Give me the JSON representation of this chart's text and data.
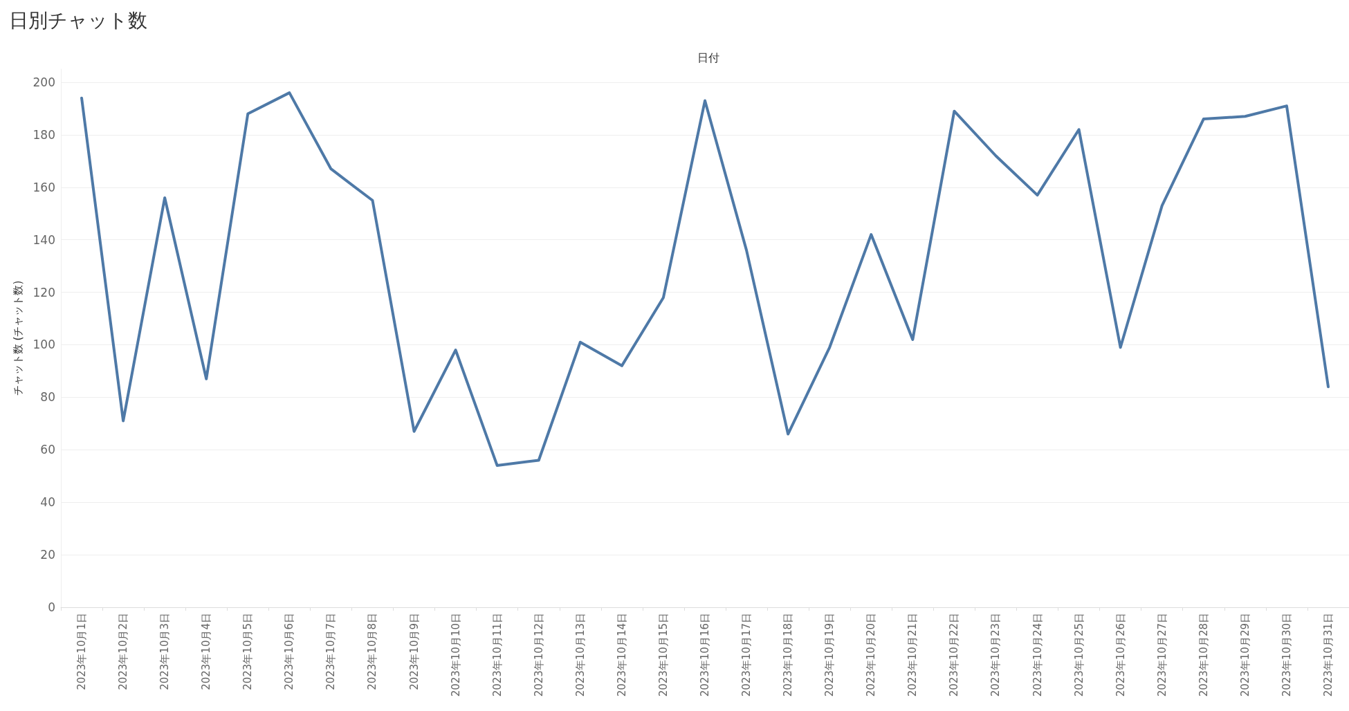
{
  "chart_data": {
    "type": "line",
    "title": "日別チャット数",
    "xlabel": "日付",
    "ylabel": "チャット数 (チャット数)",
    "categories": [
      "2023年10月1日",
      "2023年10月2日",
      "2023年10月3日",
      "2023年10月4日",
      "2023年10月5日",
      "2023年10月6日",
      "2023年10月7日",
      "2023年10月8日",
      "2023年10月9日",
      "2023年10月10日",
      "2023年10月11日",
      "2023年10月12日",
      "2023年10月13日",
      "2023年10月14日",
      "2023年10月15日",
      "2023年10月16日",
      "2023年10月17日",
      "2023年10月18日",
      "2023年10月19日",
      "2023年10月20日",
      "2023年10月21日",
      "2023年10月22日",
      "2023年10月23日",
      "2023年10月24日",
      "2023年10月25日",
      "2023年10月26日",
      "2023年10月27日",
      "2023年10月28日",
      "2023年10月29日",
      "2023年10月30日",
      "2023年10月31日"
    ],
    "series": [
      {
        "color": "#4e79a7",
        "values": [
          194,
          71,
          156,
          87,
          188,
          196,
          167,
          155,
          67,
          98,
          54,
          56,
          101,
          92,
          118,
          193,
          136,
          66,
          99,
          142,
          102,
          189,
          172,
          157,
          182,
          99,
          153,
          186,
          187,
          191,
          84
        ]
      }
    ],
    "ylim": [
      0,
      205
    ],
    "yticks": [
      0,
      20,
      40,
      60,
      80,
      100,
      120,
      140,
      160,
      180,
      200
    ],
    "grid": "y",
    "marker": "none",
    "line_style": "solid"
  }
}
